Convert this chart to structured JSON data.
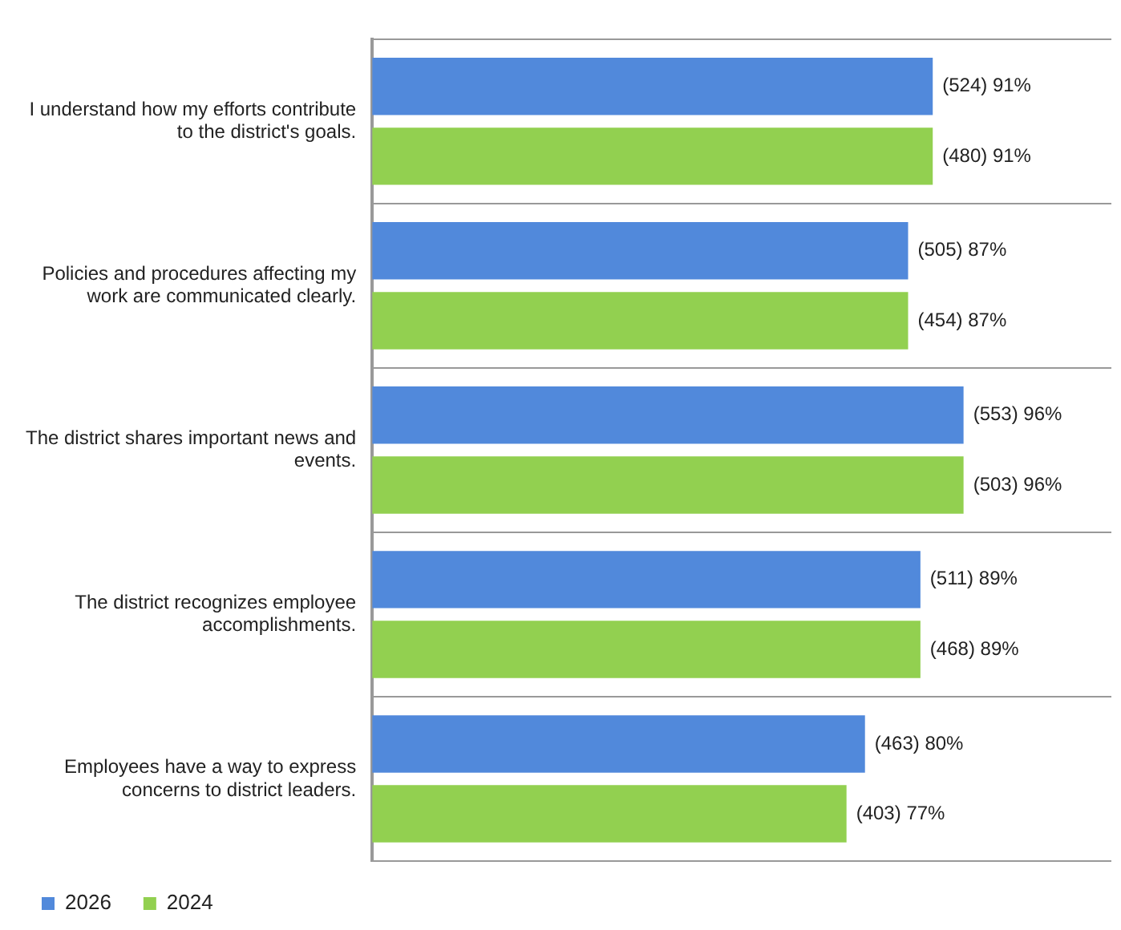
{
  "chart_data": {
    "type": "bar",
    "orientation": "horizontal",
    "categories": [
      "I understand how my efforts contribute to the district's goals.",
      "Policies and procedures affecting my work are communicated clearly.",
      "The district shares important news and events.",
      "The district recognizes employee accomplishments.",
      "Employees have a way to express concerns to district leaders."
    ],
    "series": [
      {
        "name": "2026",
        "color": "#5189db",
        "values": [
          91,
          87,
          96,
          89,
          80
        ],
        "value_labels": [
          "(524) 91%",
          "(505) 87%",
          "(553) 96%",
          "(511) 89%",
          "(463) 80%"
        ]
      },
      {
        "name": "2024",
        "color": "#92d050",
        "values": [
          91,
          87,
          96,
          89,
          77
        ],
        "value_labels": [
          "(480) 91%",
          "(454) 87%",
          "(503) 96%",
          "(468) 89%",
          "(403) 77%"
        ]
      }
    ],
    "grid": "y",
    "legend": "bottom left",
    "tick_labels": "y"
  }
}
